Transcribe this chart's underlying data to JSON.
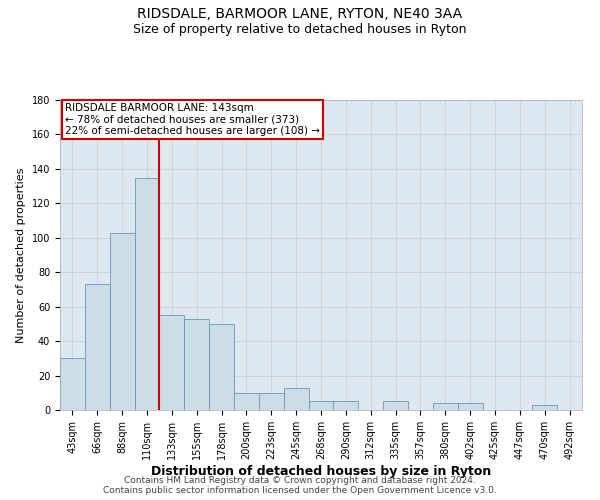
{
  "title": "RIDSDALE, BARMOOR LANE, RYTON, NE40 3AA",
  "subtitle": "Size of property relative to detached houses in Ryton",
  "xlabel": "Distribution of detached houses by size in Ryton",
  "ylabel": "Number of detached properties",
  "footer_line1": "Contains HM Land Registry data © Crown copyright and database right 2024.",
  "footer_line2": "Contains public sector information licensed under the Open Government Licence v3.0.",
  "bar_color": "#ccdde8",
  "bar_edge_color": "#6699bb",
  "grid_color": "#cccccc",
  "background_color": "#ffffff",
  "plot_bg_color": "#dde8f0",
  "annotation_box_color": "#cc0000",
  "vline_color": "#cc0000",
  "categories": [
    "43sqm",
    "66sqm",
    "88sqm",
    "110sqm",
    "133sqm",
    "155sqm",
    "178sqm",
    "200sqm",
    "223sqm",
    "245sqm",
    "268sqm",
    "290sqm",
    "312sqm",
    "335sqm",
    "357sqm",
    "380sqm",
    "402sqm",
    "425sqm",
    "447sqm",
    "470sqm",
    "492sqm"
  ],
  "values": [
    30,
    73,
    103,
    135,
    55,
    53,
    50,
    10,
    10,
    13,
    5,
    5,
    0,
    5,
    0,
    4,
    4,
    0,
    0,
    3,
    0
  ],
  "property_label": "RIDSDALE BARMOOR LANE: 143sqm",
  "annotation_line1": "← 78% of detached houses are smaller (373)",
  "annotation_line2": "22% of semi-detached houses are larger (108) →",
  "vline_x_index": 4,
  "ylim": [
    0,
    180
  ],
  "yticks": [
    0,
    20,
    40,
    60,
    80,
    100,
    120,
    140,
    160,
    180
  ],
  "title_fontsize": 10,
  "subtitle_fontsize": 9,
  "xlabel_fontsize": 9,
  "ylabel_fontsize": 8,
  "tick_fontsize": 7,
  "annotation_fontsize": 7.5,
  "footer_fontsize": 6.5
}
